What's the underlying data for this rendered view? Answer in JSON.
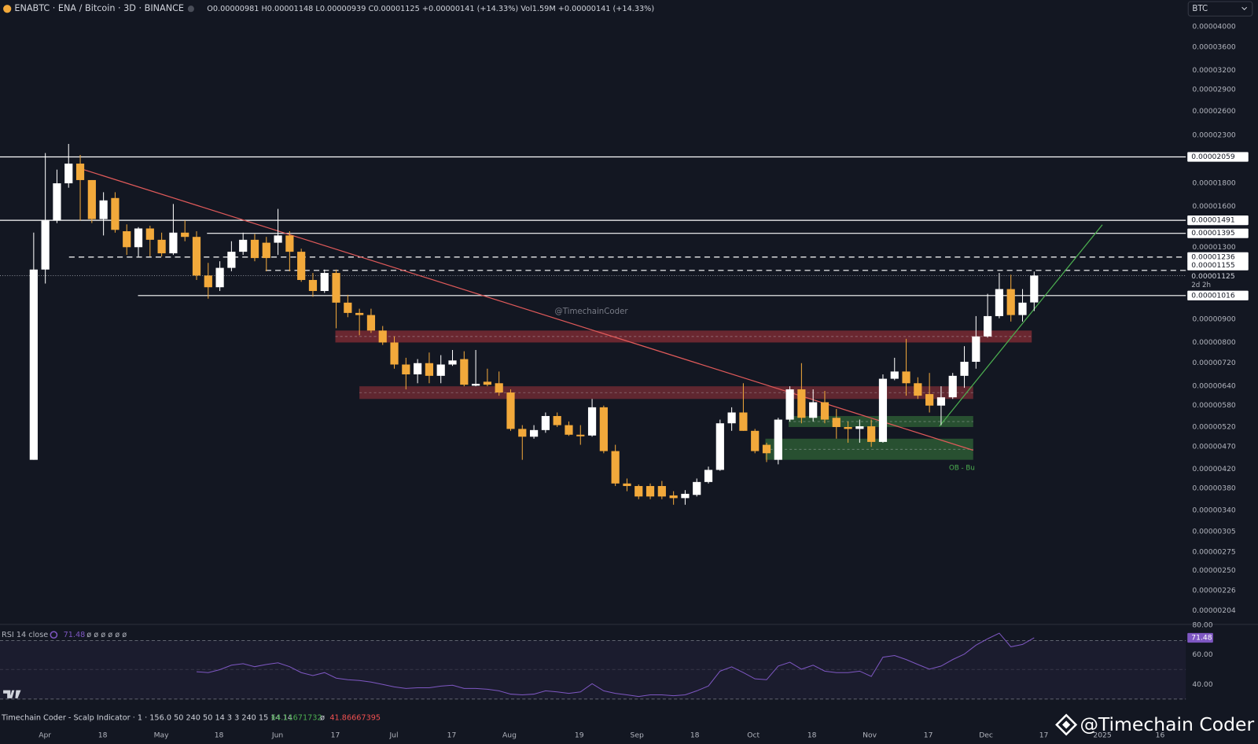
{
  "chart_data": [
    {
      "type": "candlestick",
      "title": "ENABTC · ENA / Bitcoin · 3D · BINANCE",
      "subtitle": "O0.00000981 H0.00001148 L0.00000939 C0.00001125 +0.00000141 (+14.33%) Vol1.59M +0.00000141 (+14.33%)",
      "currency": "BTC",
      "log": true,
      "grid": false,
      "up_color": "#ffffff",
      "down_color": "#f2a93b",
      "ylim": [
        1.91e-06,
        4.58e-05
      ],
      "yticks": [
        {
          "value": 4e-05,
          "label": "0.00004000"
        },
        {
          "value": 3.6e-05,
          "label": "0.00003600"
        },
        {
          "value": 3.2e-05,
          "label": "0.00003200"
        },
        {
          "value": 2.9e-05,
          "label": "0.00002900"
        },
        {
          "value": 2.6e-05,
          "label": "0.00002600"
        },
        {
          "value": 2.3e-05,
          "label": "0.00002300"
        },
        {
          "value": 1.8e-05,
          "label": "0.00001800"
        },
        {
          "value": 1.6e-05,
          "label": "0.00001600"
        },
        {
          "value": 1.3e-05,
          "label": "0.00001300"
        },
        {
          "value": 9e-06,
          "label": "0.00000900"
        },
        {
          "value": 8e-06,
          "label": "0.00000800"
        },
        {
          "value": 7.2e-06,
          "label": "0.00000720"
        },
        {
          "value": 6.4e-06,
          "label": "0.00000640"
        },
        {
          "value": 5.8e-06,
          "label": "0.00000580"
        },
        {
          "value": 5.2e-06,
          "label": "0.00000520"
        },
        {
          "value": 4.7e-06,
          "label": "0.00000470"
        },
        {
          "value": 4.2e-06,
          "label": "0.00000420"
        },
        {
          "value": 3.8e-06,
          "label": "0.00000380"
        },
        {
          "value": 3.4e-06,
          "label": "0.00000340"
        },
        {
          "value": 3.05e-06,
          "label": "0.00000305"
        },
        {
          "value": 2.75e-06,
          "label": "0.00000275"
        },
        {
          "value": 2.5e-06,
          "label": "0.00000250"
        },
        {
          "value": 2.26e-06,
          "label": "0.00000226"
        },
        {
          "value": 2.04e-06,
          "label": "0.00000204"
        }
      ],
      "x_labels": [
        "Apr",
        "18",
        "May",
        "18",
        "Jun",
        "17",
        "Jul",
        "17",
        "Aug",
        "19",
        "Sep",
        "18",
        "Oct",
        "18",
        "Nov",
        "17",
        "Dec",
        "17",
        "2025",
        "16"
      ],
      "open": [
        4.4e-06,
        1.16e-05,
        1.49e-05,
        1.8e-05,
        1.99e-05,
        1.83e-05,
        1.5e-05,
        1.67e-05,
        1.41e-05,
        1.3e-05,
        1.43e-05,
        1.35e-05,
        1.26e-05,
        1.4e-05,
        1.37e-05,
        1.125e-05,
        1.06e-05,
        1.17e-05,
        1.27e-05,
        1.35e-05,
        1.33e-05,
        1.33e-05,
        1.38e-05,
        1.27e-05,
        1.1e-05,
        1.04e-05,
        1.14e-05,
        9.8e-06,
        9.3e-06,
        9.2e-06,
        8.5e-06,
        8e-06,
        7.15e-06,
        6.8e-06,
        7.2e-06,
        6.75e-06,
        7.15e-06,
        7.35e-06,
        6.42e-06,
        6.55e-06,
        6.5e-06,
        6.2e-06,
        5.15e-06,
        4.95e-06,
        5.12e-06,
        5.5e-06,
        5.25e-06,
        5e-06,
        4.98e-06,
        5.75e-06,
        4.6e-06,
        3.9e-06,
        3.85e-06,
        3.85e-06,
        3.85e-06,
        3.67e-06,
        3.62e-06,
        3.68e-06,
        3.93e-06,
        4.18e-06,
        5.3e-06,
        5.6e-06,
        5.1e-06,
        4.75e-06,
        4.4e-06,
        5.4e-06,
        6.3e-06,
        5.45e-06,
        5.9e-06,
        5.45e-06,
        5.2e-06,
        5.15e-06,
        5.22e-06,
        4.82e-06,
        6.65e-06,
        6.9e-06,
        6.5e-06,
        6.15e-06,
        5.8e-06,
        6.05e-06,
        6.75e-06,
        7.25e-06,
        8.25e-06,
        9.15e-06,
        1.05e-05,
        9.2e-06,
        9.81e-06
      ],
      "high": [
        1.4e-05,
        2.1e-05,
        1.93e-05,
        2.2e-05,
        2.08e-05,
        1.83e-05,
        1.72e-05,
        1.72e-05,
        1.46e-05,
        1.44e-05,
        1.45e-05,
        1.4e-05,
        1.62e-05,
        1.49e-05,
        1.41e-05,
        1.2e-05,
        1.21e-05,
        1.34e-05,
        1.4e-05,
        1.39e-05,
        1.37e-05,
        1.58e-05,
        1.41e-05,
        1.29e-05,
        1.14e-05,
        1.16e-05,
        1.16e-05,
        1.02e-05,
        9.5e-06,
        9.5e-06,
        8.7e-06,
        8.25e-06,
        7.4e-06,
        7.35e-06,
        7.6e-06,
        7.5e-06,
        7.7e-06,
        7.65e-06,
        7.7e-06,
        7e-06,
        6.9e-06,
        6.3e-06,
        5.25e-06,
        5.25e-06,
        5.6e-06,
        5.6e-06,
        5.35e-06,
        5.25e-06,
        6e-06,
        5.8e-06,
        4.75e-06,
        4e-06,
        3.88e-06,
        3.9e-06,
        3.95e-06,
        3.75e-06,
        3.77e-06,
        4e-06,
        4.25e-06,
        5.4e-06,
        5.75e-06,
        6.5e-06,
        5.15e-06,
        4.8e-06,
        5.45e-06,
        6.4e-06,
        7.2e-06,
        6.3e-06,
        6.25e-06,
        5.7e-06,
        5.35e-06,
        5.4e-06,
        5.4e-06,
        6.8e-06,
        7.4e-06,
        8.15e-06,
        6.7e-06,
        6.85e-06,
        6.4e-06,
        6.85e-06,
        7.85e-06,
        9.15e-06,
        1.025e-05,
        1.14e-05,
        1.13e-05,
        1.05e-05,
        1.148e-05
      ],
      "low": [
        4.4e-06,
        1.08e-05,
        1.47e-05,
        1.76e-05,
        1.49e-05,
        1.47e-05,
        1.38e-05,
        1.4e-05,
        1.25e-05,
        1.24e-05,
        1.24e-05,
        1.24e-05,
        1.25e-05,
        1.34e-05,
        1.1e-05,
        1e-05,
        1.04e-05,
        1.15e-05,
        1.25e-05,
        1.21e-05,
        1.15e-05,
        1.25e-05,
        1.15e-05,
        1.09e-05,
        1.01e-05,
        1.03e-05,
        8.6e-06,
        9.1e-06,
        8.3e-06,
        8.4e-06,
        7.9e-06,
        7e-06,
        6.3e-06,
        6.5e-06,
        6.5e-06,
        6.5e-06,
        7.1e-06,
        6.4e-06,
        6.4e-06,
        6.4e-06,
        6.1e-06,
        5.1e-06,
        4.4e-06,
        4.9e-06,
        5.05e-06,
        5.2e-06,
        4.97e-06,
        4.75e-06,
        4.95e-06,
        4.55e-06,
        3.85e-06,
        3.75e-06,
        3.6e-06,
        3.6e-06,
        3.6e-06,
        3.5e-06,
        3.5e-06,
        3.65e-06,
        3.9e-06,
        4.16e-06,
        5.1e-06,
        5.1e-06,
        4.55e-06,
        4.35e-06,
        4.3e-06,
        5.35e-06,
        5.3e-06,
        5.35e-06,
        5.3e-06,
        4.9e-06,
        4.8e-06,
        4.8e-06,
        4.7e-06,
        4.8e-06,
        6.6e-06,
        6.1e-06,
        6e-06,
        5.6e-06,
        5.25e-06,
        6e-06,
        6.35e-06,
        7e-06,
        8.2e-06,
        9.05e-06,
        8.9e-06,
        8.9e-06,
        9.39e-06
      ],
      "close": [
        1.16e-05,
        1.49e-05,
        1.8e-05,
        1.99e-05,
        1.83e-05,
        1.5e-05,
        1.65e-05,
        1.42e-05,
        1.3e-05,
        1.43e-05,
        1.35e-05,
        1.26e-05,
        1.4e-05,
        1.37e-05,
        1.125e-05,
        1.06e-05,
        1.17e-05,
        1.27e-05,
        1.35e-05,
        1.23e-05,
        1.23e-05,
        1.38e-05,
        1.27e-05,
        1.1e-05,
        1.04e-05,
        1.14e-05,
        9.8e-06,
        9.3e-06,
        9.2e-06,
        8.5e-06,
        8e-06,
        7.15e-06,
        6.8e-06,
        7.2e-06,
        6.75e-06,
        7.15e-06,
        7.3e-06,
        6.45e-06,
        6.48e-06,
        6.45e-06,
        6.2e-06,
        5.15e-06,
        4.95e-06,
        5.12e-06,
        5.5e-06,
        5.25e-06,
        5e-06,
        4.96e-06,
        5.75e-06,
        4.6e-06,
        3.9e-06,
        3.85e-06,
        3.65e-06,
        3.65e-06,
        3.65e-06,
        3.62e-06,
        3.7e-06,
        3.93e-06,
        4.18e-06,
        5.3e-06,
        5.6e-06,
        5.1e-06,
        4.6e-06,
        4.55e-06,
        5.4e-06,
        6.3e-06,
        5.45e-06,
        5.9e-06,
        5.4e-06,
        5.2e-06,
        5.15e-06,
        5.22e-06,
        4.82e-06,
        6.65e-06,
        6.9e-06,
        6.5e-06,
        6.1e-06,
        5.8e-06,
        6.05e-06,
        6.75e-06,
        7.25e-06,
        8.25e-06,
        9.15e-06,
        1.05e-05,
        9.2e-06,
        9.8e-06,
        1.125e-05
      ],
      "levels": [
        {
          "value": 2.059e-05,
          "label": "0.00002059",
          "style": "solid"
        },
        {
          "value": 1.491e-05,
          "label": "0.00001491",
          "style": "solid"
        },
        {
          "value": 1.395e-05,
          "label": "0.00001395",
          "style": "solid"
        },
        {
          "value": 1.236e-05,
          "label": "0.00001236",
          "style": "dashed"
        },
        {
          "value": 1.155e-05,
          "label": "0.00001155",
          "style": "dashed"
        },
        {
          "value": 1.016e-05,
          "label": "0.00001016",
          "style": "solid"
        }
      ],
      "last_price": {
        "value": 1.125e-05,
        "label": "0.00001125",
        "countdown": "2d 2h"
      },
      "zones": [
        {
          "low": 8e-06,
          "high": 8.5e-06,
          "color": "#7a2a33"
        },
        {
          "low": 6e-06,
          "high": 6.4e-06,
          "color": "#6e2a33"
        },
        {
          "low": 5.2e-06,
          "high": 5.5e-06,
          "color": "#2d5a34"
        },
        {
          "low": 4.4e-06,
          "high": 4.9e-06,
          "color": "#2d5a34"
        }
      ],
      "annotations": [
        "@TimechainCoder",
        "OB - Bu"
      ]
    },
    {
      "type": "line",
      "title": "RSI 14 close",
      "legend_extra": "ø ø ø ø ø ø",
      "color": "#7e57c2",
      "ylim": [
        28,
        80.5
      ],
      "yticks": [
        {
          "value": 80,
          "label": "80.00"
        },
        {
          "value": 60,
          "label": "60.00"
        },
        {
          "value": 40,
          "label": "40.00"
        }
      ],
      "values": [
        48.6,
        48,
        50,
        53,
        54,
        52,
        53.5,
        54.6,
        52,
        48,
        46,
        48,
        44.3,
        43.2,
        42.7,
        41.6,
        40,
        38.4,
        37.3,
        37.8,
        37.8,
        38.9,
        39.5,
        37.3,
        37.3,
        36.8,
        35.7,
        33.5,
        33,
        33.5,
        35.7,
        35,
        34,
        35,
        40.5,
        35.7,
        34,
        33,
        31.9,
        33,
        33,
        32.4,
        33,
        35.7,
        39,
        49,
        51.9,
        48,
        43.8,
        43.2,
        52.4,
        55,
        50.3,
        53,
        49,
        48,
        48,
        49,
        45.4,
        58.4,
        59.5,
        56.8,
        53.5,
        50.3,
        52.4,
        56.8,
        60.5,
        66.5,
        70.8,
        74.6,
        65.4,
        67,
        71.48
      ]
    }
  ],
  "indicator": {
    "name": "Timechain Coder - Scalp Indicator · 1 · 156.0 50 240 50 14 3 3 240 15 14 14",
    "value1": "64.11671732",
    "separator": "ø",
    "value2": "41.86667395"
  },
  "branding": "@Timechain Coder"
}
